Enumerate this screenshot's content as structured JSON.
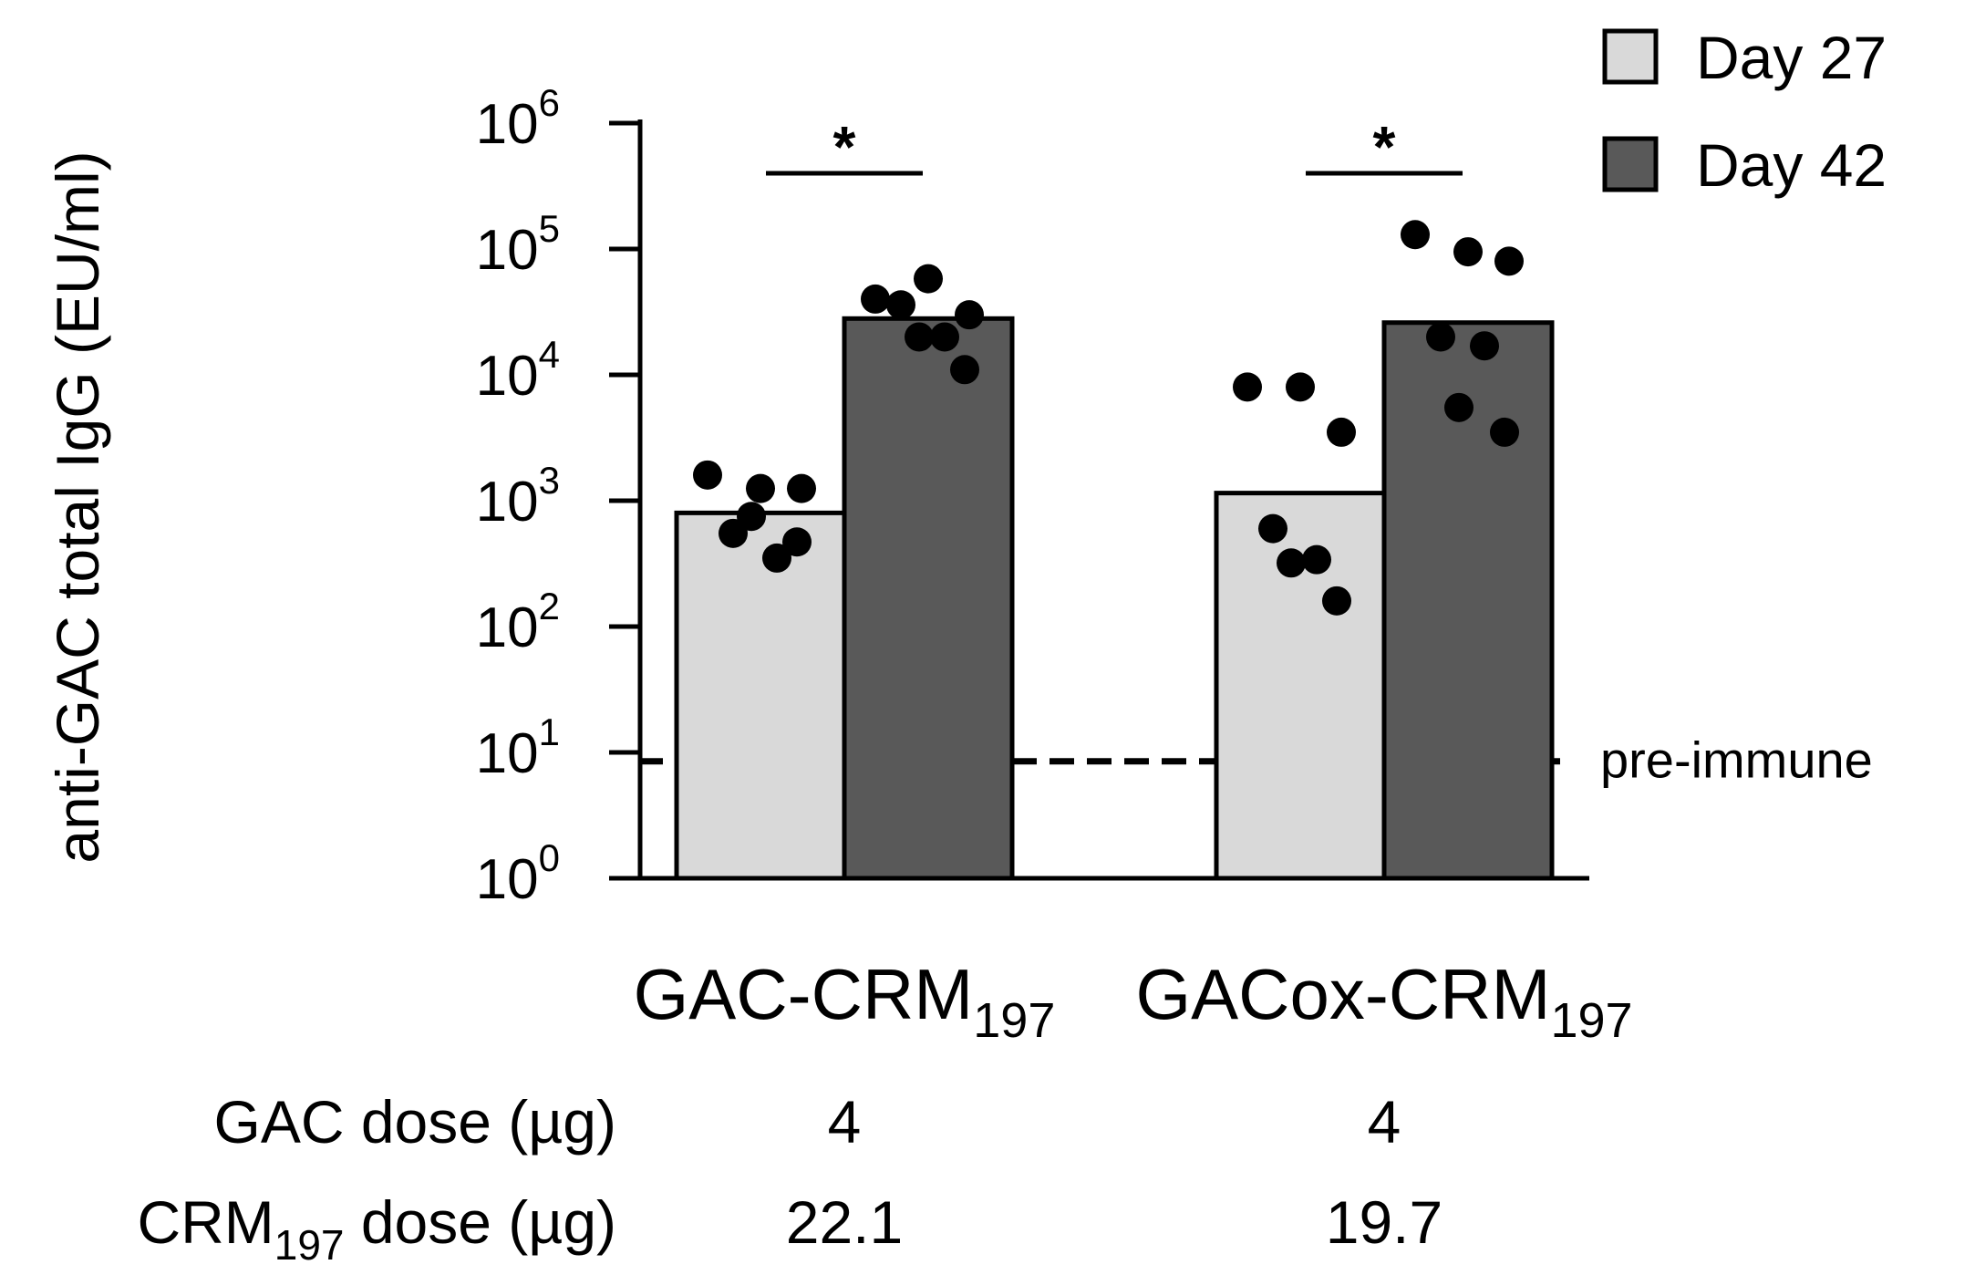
{
  "chart_data": {
    "type": "bar",
    "ylabel": "anti-GAC total IgG (EU/ml)",
    "yscale": "log",
    "ylim": [
      1,
      1000000
    ],
    "yticks": [
      {
        "value": 1,
        "base": "10",
        "exp": "0"
      },
      {
        "value": 10,
        "base": "10",
        "exp": "1"
      },
      {
        "value": 100,
        "base": "10",
        "exp": "2"
      },
      {
        "value": 1000,
        "base": "10",
        "exp": "3"
      },
      {
        "value": 10000,
        "base": "10",
        "exp": "4"
      },
      {
        "value": 100000,
        "base": "10",
        "exp": "5"
      },
      {
        "value": 1000000,
        "base": "10",
        "exp": "6"
      }
    ],
    "groups": [
      {
        "name": "GAC-CRM",
        "subscript": "197"
      },
      {
        "name": "GACox-CRM",
        "subscript": "197"
      }
    ],
    "series": [
      {
        "name": "Day 27",
        "color": "#d9d9d9",
        "values": [
          800,
          1150
        ],
        "points": [
          [
            1600,
            1250,
            1250,
            550,
            350,
            750,
            470
          ],
          [
            8000,
            8000,
            3500,
            600,
            340,
            320,
            160
          ]
        ]
      },
      {
        "name": "Day 42",
        "color": "#595959",
        "values": [
          28000,
          26000
        ],
        "points": [
          [
            40000,
            58000,
            30000,
            36000,
            20000,
            20000,
            11000
          ],
          [
            130000,
            95000,
            80000,
            20000,
            17000,
            5500,
            3500
          ]
        ]
      }
    ],
    "significance": [
      {
        "group_index": 0,
        "label": "*"
      },
      {
        "group_index": 1,
        "label": "*"
      }
    ],
    "reference_line": {
      "value": 8.5,
      "label": "pre-immune"
    },
    "legend": {
      "position": "top-right",
      "entries": [
        "Day 27",
        "Day 42"
      ]
    }
  },
  "dose_table": {
    "rows": [
      {
        "label": "GAC dose (µg)",
        "label_parts": [
          "GAC dose (µg)"
        ],
        "values": [
          "4",
          "4"
        ]
      },
      {
        "label_main": "CRM",
        "label_sub": "197",
        "label_rest": " dose (µg)",
        "values": [
          "22.1",
          "19.7"
        ]
      }
    ]
  }
}
